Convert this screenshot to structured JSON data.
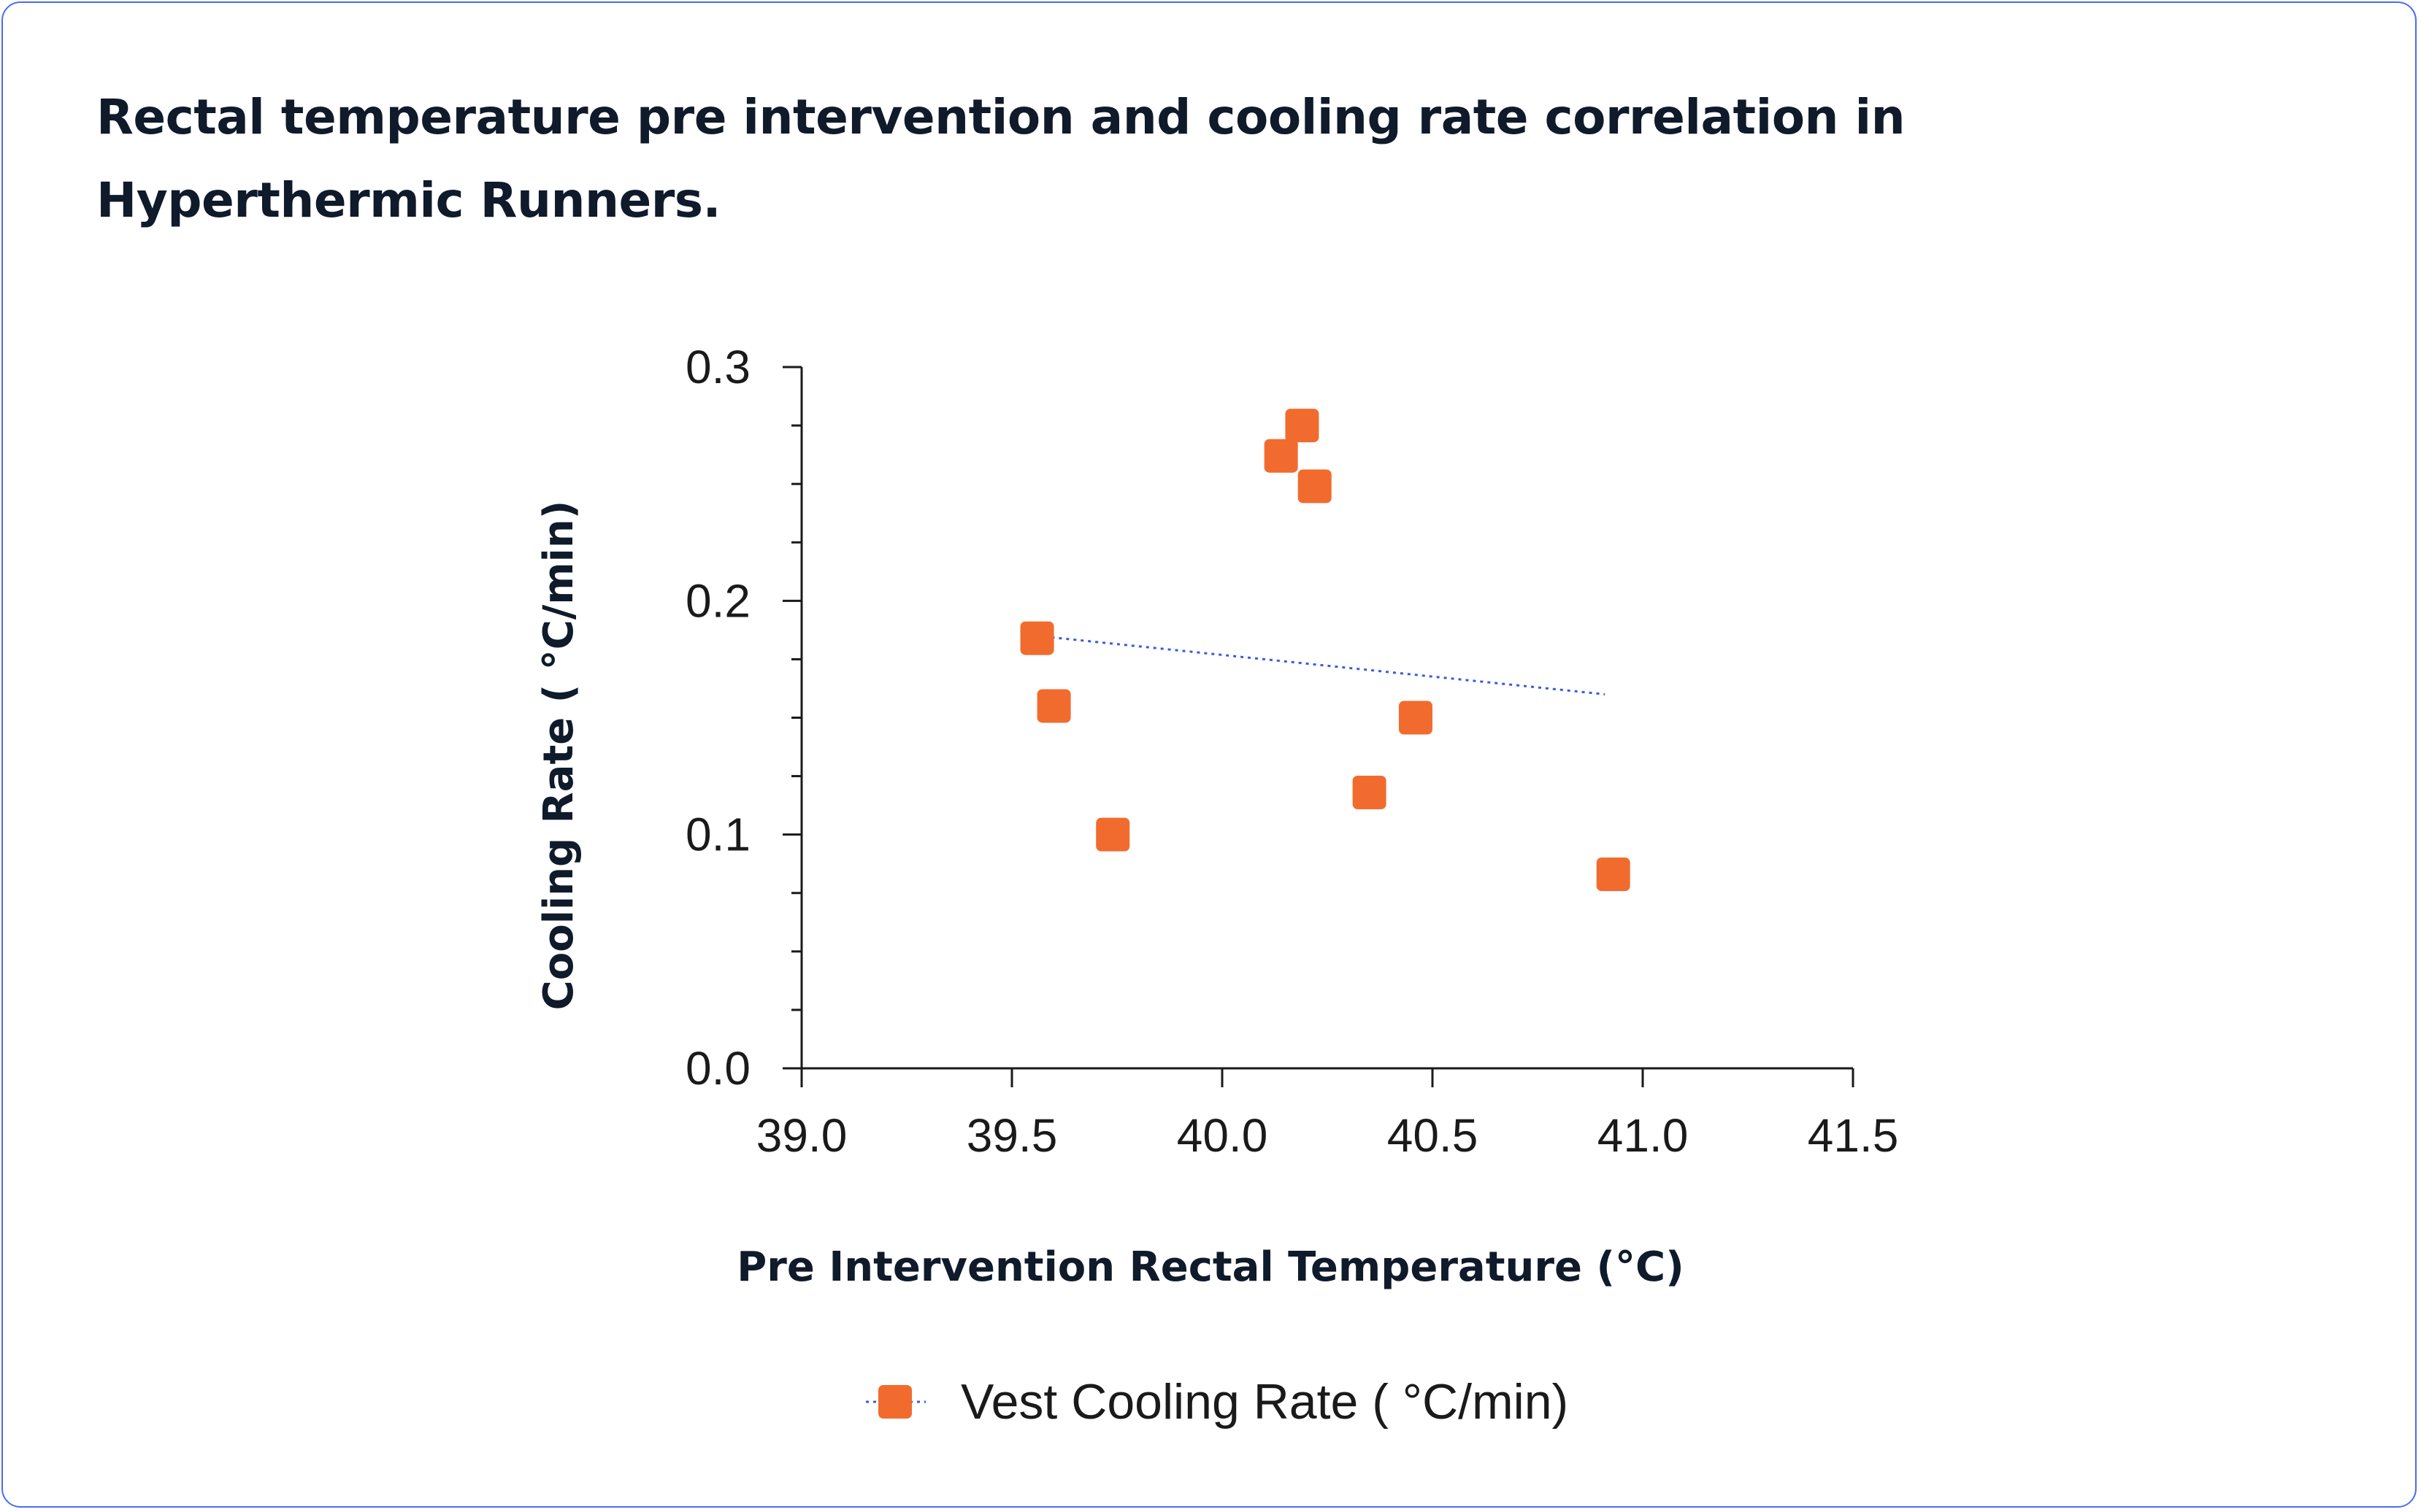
{
  "title": "Rectal temperature pre intervention and cooling rate correlation in Hyperthermic Runners.",
  "chart_data": {
    "type": "scatter",
    "title": "Rectal temperature pre intervention and cooling rate correlation in Hyperthermic Runners.",
    "xlabel": "Pre Intervention Rectal Temperature (°C)",
    "ylabel": "Cooling Rate ( °C/min)",
    "xlim": [
      39.0,
      41.5
    ],
    "ylim": [
      0.0,
      0.3
    ],
    "x_ticks": [
      "39.0",
      "39.5",
      "40.0",
      "40.5",
      "41.0",
      "41.5"
    ],
    "y_ticks": [
      "0.0",
      "0.1",
      "0.2",
      "0.3"
    ],
    "series": [
      {
        "name": "Vest Cooling Rate ( °C/min)",
        "color": "#f26b2e",
        "marker": "square",
        "points": [
          {
            "x": 39.56,
            "y": 0.184
          },
          {
            "x": 39.6,
            "y": 0.155
          },
          {
            "x": 39.74,
            "y": 0.1
          },
          {
            "x": 40.14,
            "y": 0.262
          },
          {
            "x": 40.19,
            "y": 0.275
          },
          {
            "x": 40.22,
            "y": 0.249
          },
          {
            "x": 40.35,
            "y": 0.118
          },
          {
            "x": 40.46,
            "y": 0.15
          },
          {
            "x": 40.93,
            "y": 0.083
          }
        ]
      }
    ],
    "trendline": {
      "style": "dotted",
      "color": "#3a5bdc",
      "x": [
        39.56,
        40.91
      ],
      "y": [
        0.185,
        0.16
      ]
    },
    "legend": {
      "position": "bottom-center",
      "entries": [
        "Vest Cooling Rate ( °C/min)"
      ]
    },
    "grid": false
  }
}
